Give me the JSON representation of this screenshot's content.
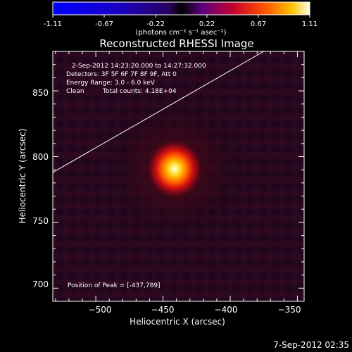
{
  "chart_data": {
    "type": "heatmap",
    "title": "Reconstructed RHESSI Image",
    "colorbar": {
      "tick_labels": [
        "-1.11",
        "-0.67",
        "-0.22",
        "0.22",
        "0.67",
        "1.11"
      ],
      "unit_label": "(photons cm⁻² s⁻¹ asec⁻²)",
      "range": [
        -1.11,
        1.11
      ]
    },
    "annotations": {
      "time_range": "2-Sep-2012 14:23:20.000 to 14:27:32.000",
      "detectors": "Detectors: 3F 5F 6F 7F 8F 9F, Att 0",
      "energy_range": "Energy Range: 3.0 - 6.0 keV",
      "clean_label": "Clean",
      "total_counts": "Total counts: 4.18E+04",
      "peak_position": "Position of Peak = [-437,789]"
    },
    "xlabel": "Heliocentric X (arcsec)",
    "ylabel": "Heliocentric Y (arcsec)",
    "xlim": [
      -532,
      -345
    ],
    "ylim": [
      690,
      880
    ],
    "x_ticks": [
      -500,
      -450,
      -400,
      -350
    ],
    "y_ticks": [
      700,
      750,
      800,
      850
    ],
    "x_tick_labels": [
      "−500",
      "−450",
      "−400",
      "−350"
    ],
    "y_tick_labels": [
      "700",
      "750",
      "800",
      "850"
    ],
    "peak": {
      "x": -437,
      "y": 789,
      "value": 1.11
    },
    "limb_line": [
      [
        -532,
        788
      ],
      [
        -375,
        880
      ]
    ],
    "timestamp": "7-Sep-2012 02:35"
  }
}
